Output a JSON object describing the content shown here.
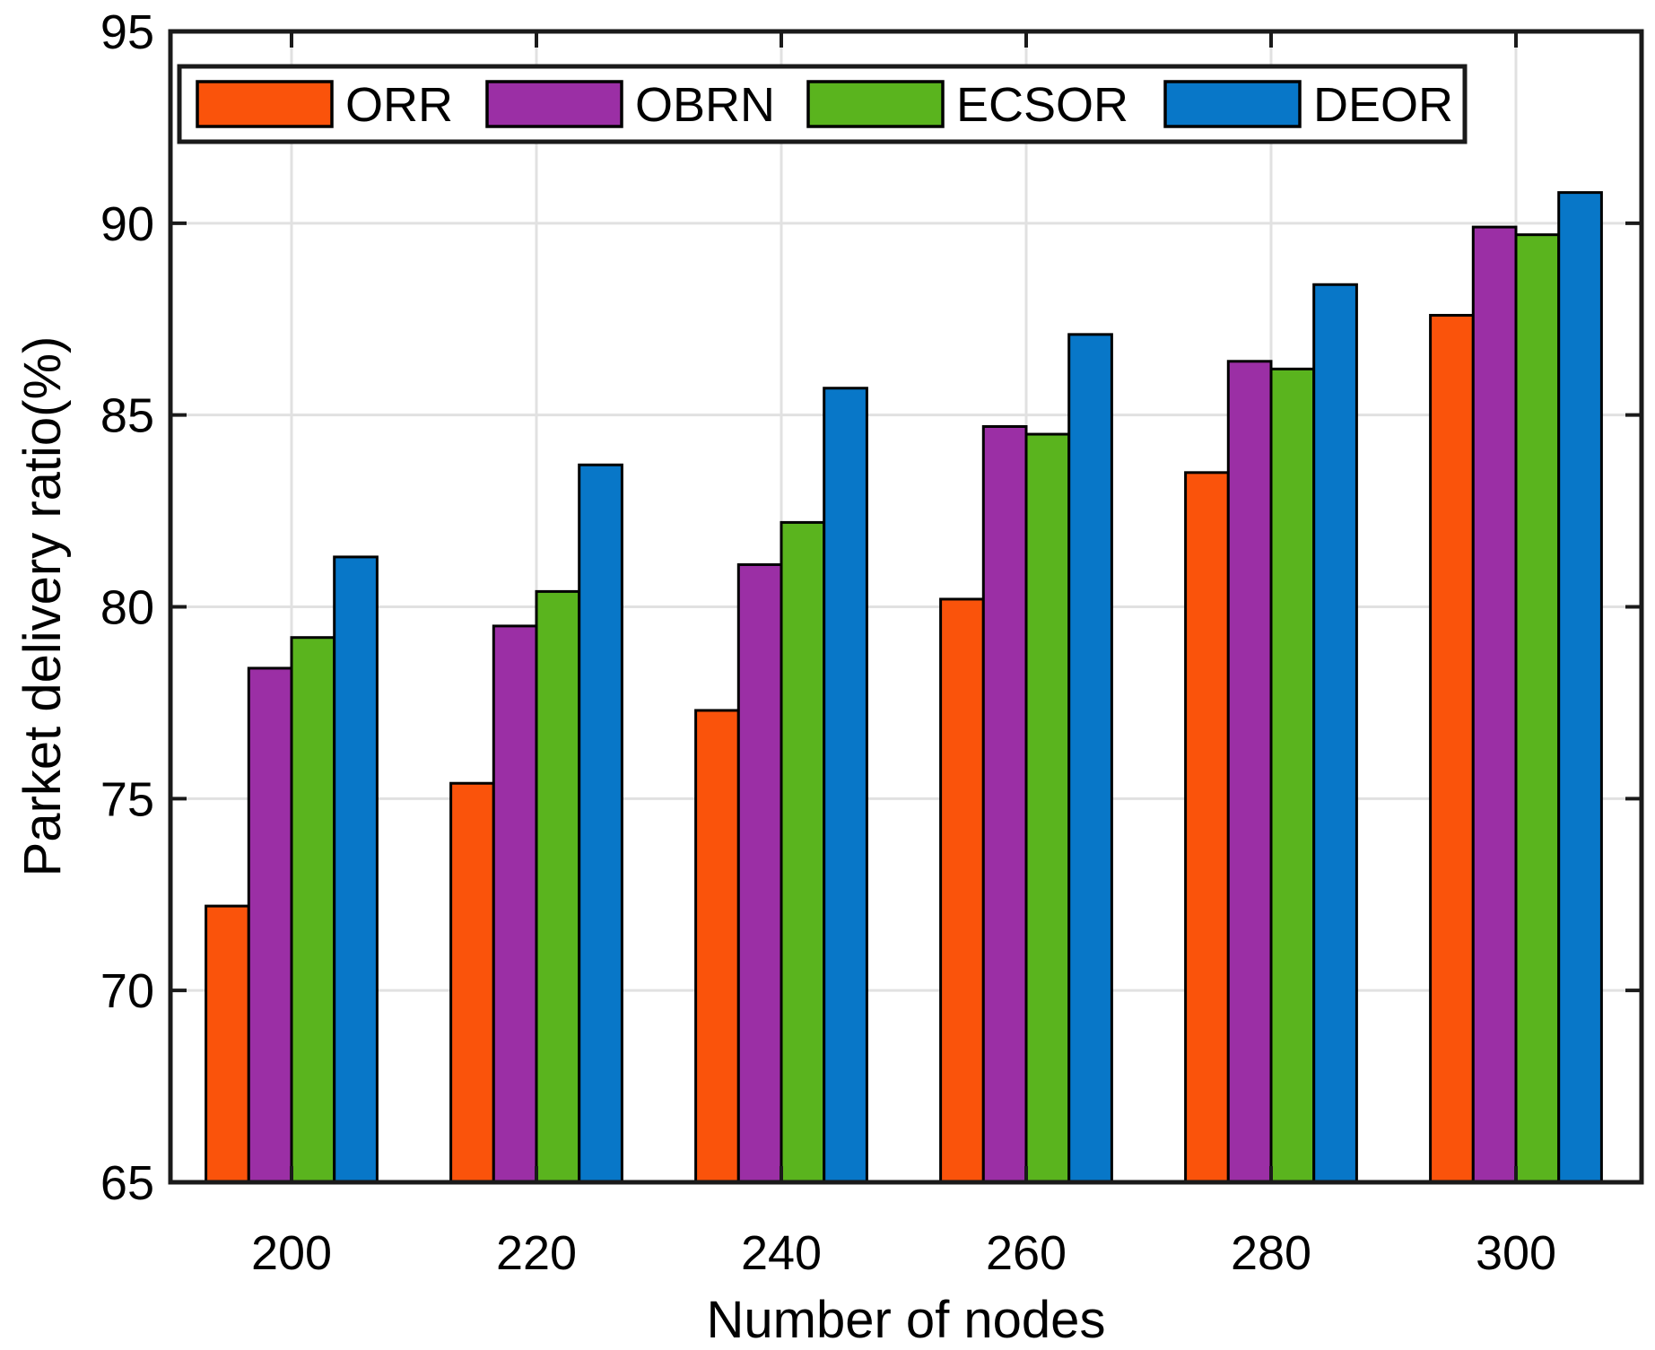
{
  "chart_data": {
    "type": "bar",
    "title": "",
    "xlabel": "Number of nodes",
    "ylabel": "Parket delivery ratio(%)",
    "categories": [
      200,
      220,
      240,
      260,
      280,
      300
    ],
    "series": [
      {
        "name": "ORR",
        "color": "#FA530B",
        "values": [
          72.2,
          75.4,
          77.3,
          80.2,
          83.5,
          87.6
        ]
      },
      {
        "name": "OBRN",
        "color": "#9B2FA5",
        "values": [
          78.4,
          79.5,
          81.1,
          84.7,
          86.4,
          89.9
        ]
      },
      {
        "name": "ECSOR",
        "color": "#5AB41E",
        "values": [
          79.2,
          80.4,
          82.2,
          84.5,
          86.2,
          89.7
        ]
      },
      {
        "name": "DEOR",
        "color": "#0877C8",
        "values": [
          81.3,
          83.7,
          85.7,
          87.1,
          88.4,
          90.8
        ]
      }
    ],
    "ylim": [
      65,
      95
    ],
    "yticks": [
      65,
      70,
      75,
      80,
      85,
      90,
      95
    ],
    "grid": true,
    "legend_position": "top-inside-horizontal",
    "colors": {
      "axis": "#1a1a1a",
      "grid": "#e1e1e1",
      "bar_edge": "#000000",
      "text": "#000000",
      "legend_background": "#ffffff"
    }
  }
}
